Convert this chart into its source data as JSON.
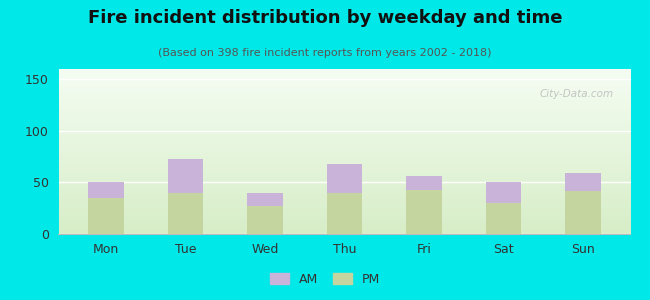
{
  "title": "Fire incident distribution by weekday and time",
  "subtitle": "(Based on 398 fire incident reports from years 2002 - 2018)",
  "days": [
    "Mon",
    "Tue",
    "Wed",
    "Thu",
    "Fri",
    "Sat",
    "Sun"
  ],
  "pm_values": [
    35,
    40,
    27,
    40,
    43,
    30,
    42
  ],
  "am_values": [
    15,
    33,
    13,
    28,
    13,
    20,
    17
  ],
  "pm_color": "#c5d5a0",
  "am_color": "#c9b3d9",
  "background_outer": "#00e8e8",
  "ylim": [
    0,
    160
  ],
  "yticks": [
    0,
    50,
    100,
    150
  ],
  "watermark": "City-Data.com",
  "legend_am_label": "AM",
  "legend_pm_label": "PM",
  "title_fontsize": 13,
  "subtitle_fontsize": 8,
  "tick_fontsize": 9,
  "bar_width": 0.45
}
